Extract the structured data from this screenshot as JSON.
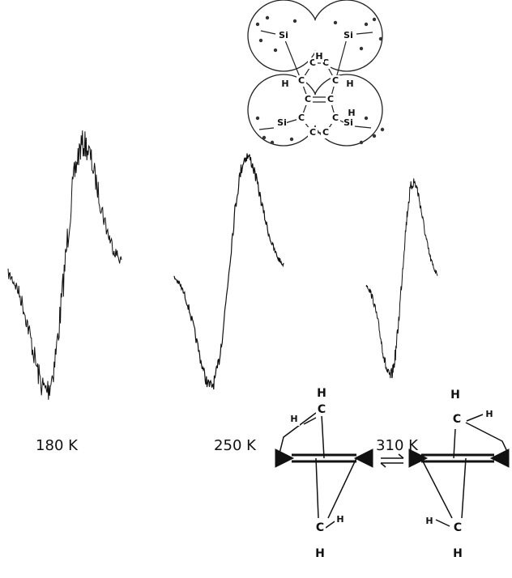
{
  "spectra": [
    {
      "label": "180 K"
    },
    {
      "label": "250 K"
    },
    {
      "label": "310 K"
    }
  ],
  "top_molecule": {
    "atoms": [
      "Si",
      "Si",
      "Si",
      "Si",
      "C",
      "C",
      "C",
      "C",
      "C",
      "C",
      "C",
      "C",
      "C",
      "C",
      "H",
      "H",
      "H",
      "H"
    ]
  },
  "conformers": [
    {
      "atoms": [
        "H",
        "C",
        "H",
        "C",
        "H",
        "H"
      ]
    },
    {
      "atoms": [
        "H",
        "C",
        "H",
        "C",
        "H",
        "H"
      ]
    }
  ]
}
